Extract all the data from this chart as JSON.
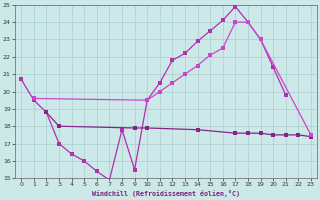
{
  "bg_color": "#cce8e8",
  "grid_color": "#aacece",
  "xlabel": "Windchill (Refroidissement éolien,°C)",
  "xlim": [
    -0.5,
    23.5
  ],
  "ylim": [
    15,
    25
  ],
  "yticks": [
    15,
    16,
    17,
    18,
    19,
    20,
    21,
    22,
    23,
    24,
    25
  ],
  "xticks": [
    0,
    1,
    2,
    3,
    4,
    5,
    6,
    7,
    8,
    9,
    10,
    11,
    12,
    13,
    14,
    15,
    16,
    17,
    18,
    19,
    20,
    21,
    22,
    23
  ],
  "line1_x": [
    0,
    1,
    2,
    3,
    4,
    5,
    6,
    7,
    8,
    9,
    10,
    11,
    12,
    13,
    14,
    15,
    16,
    17,
    18,
    19,
    20,
    21
  ],
  "line1_y": [
    20.7,
    19.5,
    18.8,
    17.0,
    16.4,
    16.0,
    15.4,
    14.9,
    17.8,
    15.5,
    19.5,
    20.5,
    21.8,
    22.2,
    22.9,
    23.5,
    24.1,
    24.9,
    24.0,
    23.0,
    21.4,
    19.8
  ],
  "line1_color": "#b030b0",
  "line2_x": [
    2,
    3,
    9,
    10,
    14,
    17,
    18,
    19,
    20,
    21,
    22,
    23
  ],
  "line2_y": [
    18.8,
    18.0,
    17.9,
    17.9,
    17.8,
    17.6,
    17.6,
    17.6,
    17.5,
    17.5,
    17.5,
    17.4
  ],
  "line2_color": "#882288",
  "line3_x": [
    1,
    10,
    11,
    12,
    13,
    14,
    15,
    16,
    17,
    18,
    19,
    23
  ],
  "line3_y": [
    19.6,
    19.5,
    20.0,
    20.5,
    21.0,
    21.5,
    22.1,
    22.5,
    24.0,
    24.0,
    23.0,
    17.5
  ],
  "line3_color": "#cc44cc"
}
